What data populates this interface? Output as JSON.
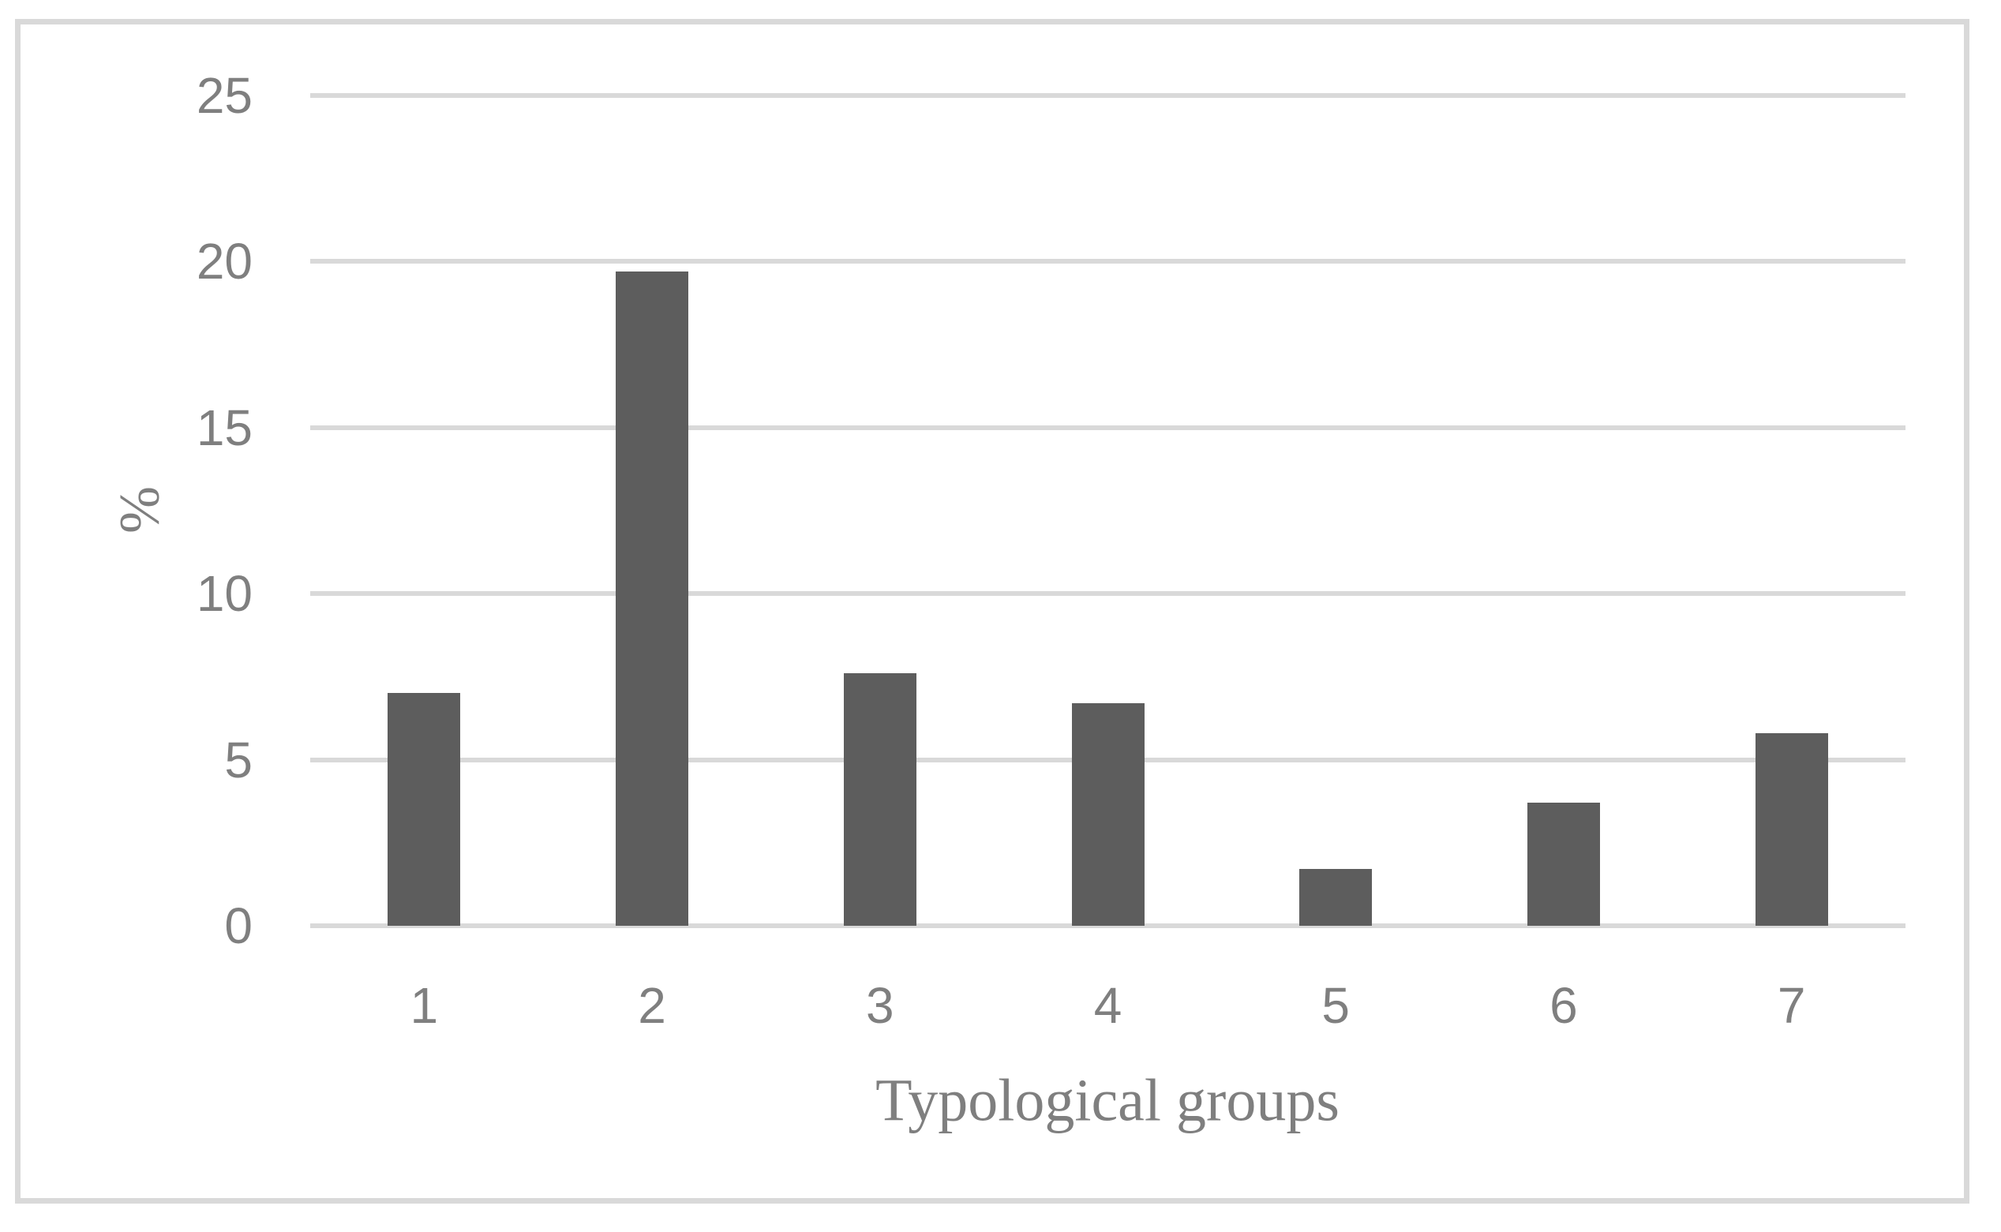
{
  "chart_data": {
    "type": "bar",
    "title": "",
    "categories": [
      "1",
      "2",
      "3",
      "4",
      "5",
      "6",
      "7"
    ],
    "values": [
      7.0,
      19.7,
      7.6,
      6.7,
      1.7,
      3.7,
      5.8
    ],
    "xlabel": "Typological groups",
    "ylabel": "%",
    "ylim": [
      0,
      25
    ],
    "yticks": [
      0,
      5,
      10,
      15,
      20,
      25
    ],
    "grid": "horizontal",
    "legend_position": "none",
    "bar_color": "#5d5d5d",
    "gridline_color": "#d9d9d9",
    "frame_color": "#d9d9d9",
    "label_color": "#7f7f7f",
    "background_color": "#ffffff"
  }
}
